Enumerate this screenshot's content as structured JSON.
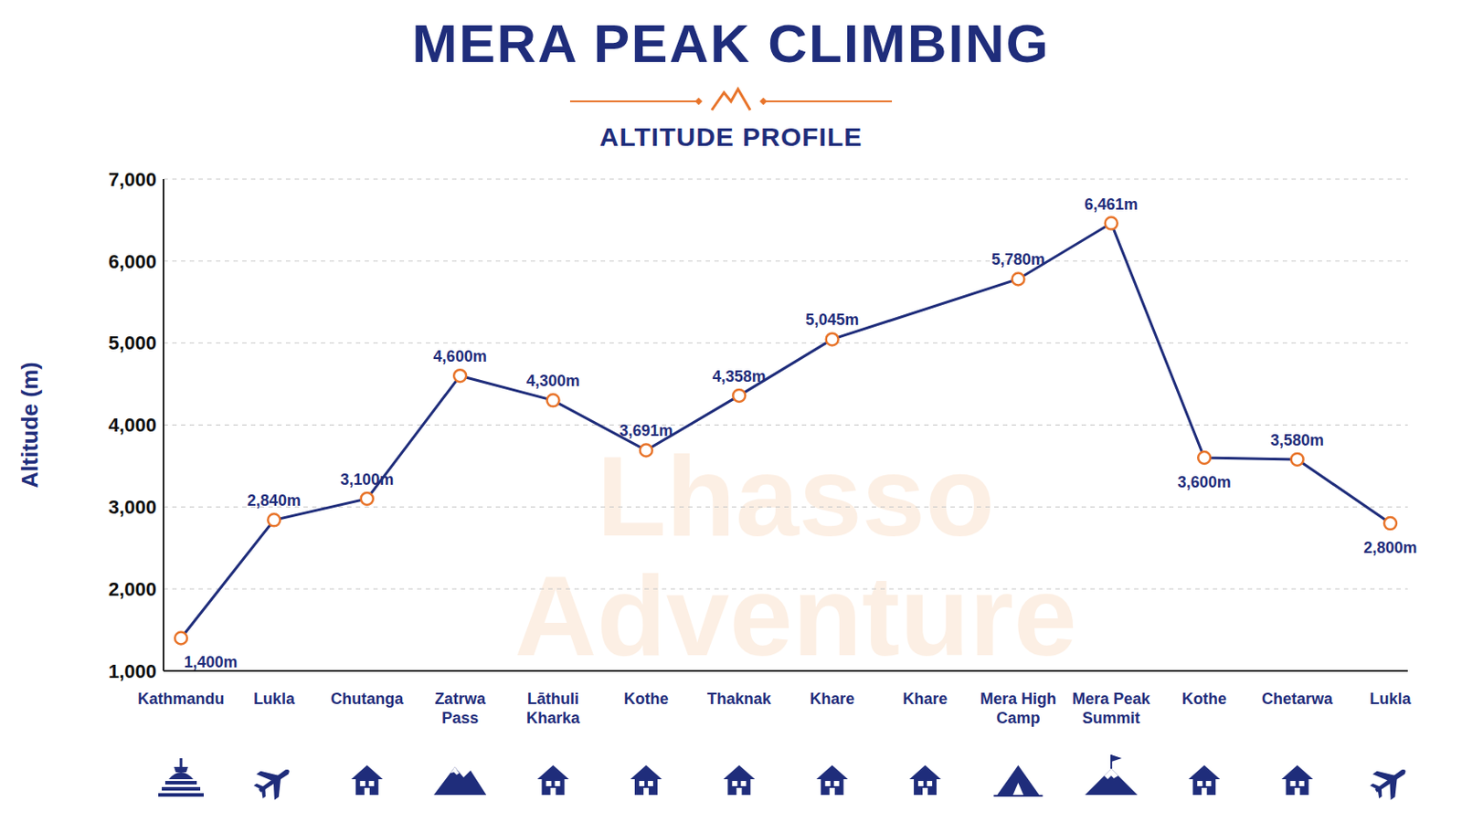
{
  "chart_data": {
    "type": "line",
    "title": "MERA PEAK CLIMBING",
    "subtitle": "ALTITUDE PROFILE",
    "y_label": "Altitude (m)",
    "watermark": "Lhasso Adventure",
    "categories": [
      "Kathmandu",
      "Lukla",
      "Chutanga",
      "Zatrwa Pass",
      "Lāthuli Kharka",
      "Kothe",
      "Thaknak",
      "Khare",
      "Khare",
      "Mera High Camp",
      "Mera Peak Summit",
      "Kothe",
      "Chetarwa",
      "Lukla"
    ],
    "values": [
      1400,
      2840,
      3100,
      4600,
      4300,
      3691,
      4358,
      5045,
      null,
      5780,
      6461,
      3600,
      3580,
      2800
    ],
    "value_labels": [
      "1,400m",
      "2,840m",
      "3,100m",
      "4,600m",
      "4,300m",
      "3,691m",
      "4,358m",
      "5,045m",
      null,
      "5,780m",
      "6,461m",
      "3,600m",
      "3,580m",
      "2,800m"
    ],
    "color": "#1f2d7b",
    "marker": "circle",
    "ylim": [
      1000,
      7000
    ],
    "yticks": [
      {
        "value": 1000,
        "label": "1,000"
      },
      {
        "value": 2000,
        "label": "2,000"
      },
      {
        "value": 3000,
        "label": "3,000"
      },
      {
        "value": 4000,
        "label": "4,000"
      },
      {
        "value": 5000,
        "label": "5,000"
      },
      {
        "value": 6000,
        "label": "6,000"
      },
      {
        "value": 7000,
        "label": "7,000"
      }
    ],
    "grid": true,
    "data_labels": true
  }
}
